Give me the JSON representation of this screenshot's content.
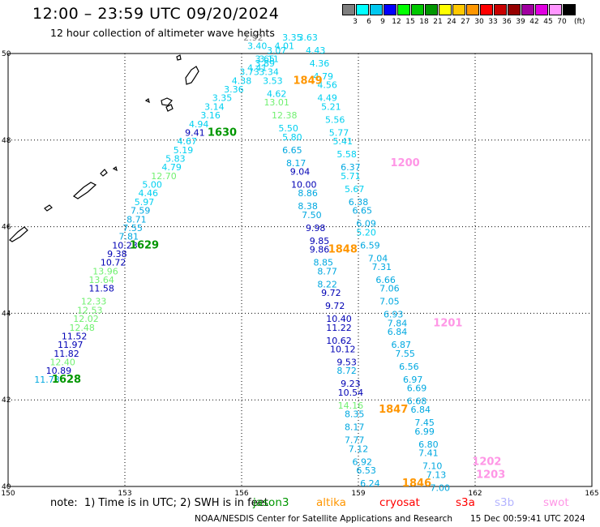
{
  "header": {
    "title": "12:00 – 23:59 UTC 09/20/2024",
    "subtitle": "12 hour collection of altimeter wave heights"
  },
  "legend": {
    "unit": "(ft)",
    "bins": [
      {
        "label": "3",
        "color": "#7f7f7f"
      },
      {
        "label": "6",
        "color": "#00ffff"
      },
      {
        "label": "9",
        "color": "#00c8f0"
      },
      {
        "label": "12",
        "color": "#0000ff"
      },
      {
        "label": "15",
        "color": "#00ff00"
      },
      {
        "label": "18",
        "color": "#00c800"
      },
      {
        "label": "21",
        "color": "#009600"
      },
      {
        "label": "24",
        "color": "#ffff00"
      },
      {
        "label": "27",
        "color": "#ffc800"
      },
      {
        "label": "30",
        "color": "#ff9600"
      },
      {
        "label": "33",
        "color": "#ff0000"
      },
      {
        "label": "36",
        "color": "#c80000"
      },
      {
        "label": "39",
        "color": "#960000"
      },
      {
        "label": "42",
        "color": "#a000a0"
      },
      {
        "label": "45",
        "color": "#e100e1"
      },
      {
        "label": "70",
        "color": "#ff96ff"
      },
      {
        "label": "",
        "color": "#000000"
      }
    ]
  },
  "map_data": {
    "lon_range": [
      150,
      165
    ],
    "lat_range": [
      40,
      50
    ],
    "lon_ticks": [
      "150",
      "153",
      "156",
      "159",
      "162",
      "165"
    ],
    "lat_ticks": [
      "50",
      "48",
      "46",
      "44",
      "42",
      "40"
    ],
    "track_colors": {
      "c": "#00d0f0",
      "b": "#00a8e0",
      "d": "#0000b4",
      "g": "#70f070",
      "gr": "#888888"
    },
    "tracks": [
      {
        "name": "jason3-a",
        "points": [
          [
            "11.73",
            151.0,
            42.4,
            "b"
          ],
          [
            "10.89",
            151.3,
            42.6,
            "d"
          ],
          [
            "12.40",
            151.4,
            42.8,
            "g"
          ],
          [
            "11.82",
            151.5,
            43.0,
            "d"
          ],
          [
            "11.97",
            151.6,
            43.2,
            "d"
          ],
          [
            "11.52",
            151.7,
            43.4,
            "d"
          ],
          [
            "12.48",
            151.9,
            43.6,
            "g"
          ],
          [
            "12.02",
            152.0,
            43.8,
            "g"
          ],
          [
            "12.53",
            152.1,
            44.0,
            "g"
          ],
          [
            "12.33",
            152.2,
            44.2,
            "g"
          ],
          [
            "11.58",
            152.4,
            44.5,
            "d"
          ],
          [
            "13.64",
            152.4,
            44.7,
            "g"
          ],
          [
            "13.96",
            152.5,
            44.9,
            "g"
          ],
          [
            "10.72",
            152.7,
            45.1,
            "d"
          ],
          [
            "9.38",
            152.8,
            45.3,
            "d"
          ],
          [
            "10.23",
            153.0,
            45.5,
            "d"
          ],
          [
            "7.81",
            153.1,
            45.7,
            "b"
          ],
          [
            "7.55",
            153.2,
            45.9,
            "b"
          ],
          [
            "8.71",
            153.3,
            46.1,
            "b"
          ],
          [
            "7.59",
            153.4,
            46.3,
            "b"
          ],
          [
            "5.97",
            153.5,
            46.5,
            "c"
          ],
          [
            "4.46",
            153.6,
            46.7,
            "c"
          ],
          [
            "5.00",
            153.7,
            46.9,
            "c"
          ],
          [
            "12.70",
            154.0,
            47.1,
            "g"
          ],
          [
            "4.79",
            154.2,
            47.3,
            "c"
          ],
          [
            "5.83",
            154.3,
            47.5,
            "c"
          ],
          [
            "5.19",
            154.5,
            47.7,
            "c"
          ],
          [
            "4.67",
            154.6,
            47.9,
            "c"
          ],
          [
            "9.41",
            154.8,
            48.1,
            "d"
          ],
          [
            "4.94",
            154.9,
            48.3,
            "c"
          ],
          [
            "3.16",
            155.2,
            48.5,
            "c"
          ],
          [
            "3.14",
            155.3,
            48.7,
            "c"
          ],
          [
            "3.35",
            155.5,
            48.9,
            "c"
          ],
          [
            "3.36",
            155.8,
            49.1,
            "c"
          ],
          [
            "4.38",
            156.0,
            49.3,
            "c"
          ],
          [
            "3.73",
            156.2,
            49.5,
            "c"
          ],
          [
            "4.41",
            156.4,
            49.6,
            "c"
          ],
          [
            "3.89",
            156.6,
            49.7,
            "c"
          ],
          [
            "3.65",
            156.6,
            49.8,
            "c"
          ],
          [
            "3.40",
            156.4,
            50.1,
            "c"
          ],
          [
            "2.92",
            156.3,
            50.3,
            "gr"
          ]
        ]
      },
      {
        "name": "sentinel3a",
        "points": [
          [
            "3.35",
            157.3,
            50.3,
            "c"
          ],
          [
            "4.01",
            157.1,
            50.1,
            "c"
          ],
          [
            "3.07",
            156.9,
            50.0,
            "c"
          ],
          [
            "3.11",
            156.7,
            49.8,
            "c"
          ],
          [
            "3.34",
            156.7,
            49.5,
            "c"
          ],
          [
            "3.53",
            156.8,
            49.3,
            "c"
          ],
          [
            "4.62",
            156.9,
            49.0,
            "c"
          ],
          [
            "13.01",
            156.9,
            48.8,
            "g"
          ],
          [
            "12.38",
            157.1,
            48.5,
            "g"
          ],
          [
            "5.50",
            157.2,
            48.2,
            "c"
          ],
          [
            "5.80",
            157.3,
            48.0,
            "c"
          ],
          [
            "6.65",
            157.3,
            47.7,
            "b"
          ],
          [
            "8.17",
            157.4,
            47.4,
            "b"
          ],
          [
            "9.04",
            157.5,
            47.2,
            "d"
          ],
          [
            "10.00",
            157.6,
            46.9,
            "d"
          ],
          [
            "8.86",
            157.7,
            46.7,
            "b"
          ],
          [
            "8.38",
            157.7,
            46.4,
            "b"
          ],
          [
            "7.50",
            157.8,
            46.2,
            "b"
          ],
          [
            "9.98",
            157.9,
            45.9,
            "d"
          ],
          [
            "9.85",
            158.0,
            45.6,
            "d"
          ],
          [
            "9.86",
            158.0,
            45.4,
            "d"
          ],
          [
            "8.85",
            158.1,
            45.1,
            "b"
          ],
          [
            "8.77",
            158.2,
            44.9,
            "b"
          ],
          [
            "8.22",
            158.2,
            44.6,
            "b"
          ],
          [
            "9.72",
            158.3,
            44.4,
            "d"
          ],
          [
            "9.72",
            158.4,
            44.1,
            "d"
          ],
          [
            "10.40",
            158.5,
            43.8,
            "d"
          ],
          [
            "11.22",
            158.5,
            43.6,
            "d"
          ],
          [
            "10.62",
            158.5,
            43.3,
            "d"
          ],
          [
            "10.12",
            158.6,
            43.1,
            "d"
          ],
          [
            "9.53",
            158.7,
            42.8,
            "d"
          ],
          [
            "8.72",
            158.7,
            42.6,
            "b"
          ],
          [
            "9.23",
            158.8,
            42.3,
            "d"
          ],
          [
            "10.54",
            158.8,
            42.1,
            "d"
          ],
          [
            "14.16",
            158.8,
            41.8,
            "g"
          ],
          [
            "8.35",
            158.9,
            41.6,
            "b"
          ],
          [
            "8.17",
            158.9,
            41.3,
            "b"
          ],
          [
            "7.77",
            158.9,
            41.0,
            "b"
          ],
          [
            "7.12",
            159.0,
            40.8,
            "b"
          ],
          [
            "6.92",
            159.1,
            40.5,
            "b"
          ],
          [
            "6.53",
            159.2,
            40.3,
            "b"
          ],
          [
            "6.24",
            159.3,
            40.0,
            "b"
          ]
        ]
      },
      {
        "name": "sentinel3b",
        "points": [
          [
            "3.63",
            157.7,
            50.3,
            "c"
          ],
          [
            "4.43",
            157.9,
            50.0,
            "c"
          ],
          [
            "4.36",
            158.0,
            49.7,
            "c"
          ],
          [
            "4.79",
            158.1,
            49.4,
            "c"
          ],
          [
            "4.56",
            158.2,
            49.2,
            "c"
          ],
          [
            "4.49",
            158.2,
            48.9,
            "c"
          ],
          [
            "5.21",
            158.3,
            48.7,
            "c"
          ],
          [
            "5.56",
            158.4,
            48.4,
            "c"
          ],
          [
            "5.77",
            158.5,
            48.1,
            "c"
          ],
          [
            "5.41",
            158.6,
            47.9,
            "c"
          ],
          [
            "5.58",
            158.7,
            47.6,
            "c"
          ],
          [
            "6.37",
            158.8,
            47.3,
            "b"
          ],
          [
            "5.71",
            158.8,
            47.1,
            "c"
          ],
          [
            "5.67",
            158.9,
            46.8,
            "c"
          ],
          [
            "6.38",
            159.0,
            46.5,
            "b"
          ],
          [
            "6.65",
            159.1,
            46.3,
            "b"
          ],
          [
            "6.09",
            159.2,
            46.0,
            "b"
          ],
          [
            "5.20",
            159.2,
            45.8,
            "c"
          ],
          [
            "6.59",
            159.3,
            45.5,
            "b"
          ],
          [
            "7.04",
            159.5,
            45.2,
            "b"
          ],
          [
            "7.31",
            159.6,
            45.0,
            "b"
          ],
          [
            "6.66",
            159.7,
            44.7,
            "b"
          ],
          [
            "7.06",
            159.8,
            44.5,
            "b"
          ],
          [
            "7.05",
            159.8,
            44.2,
            "b"
          ],
          [
            "6.93",
            159.9,
            43.9,
            "b"
          ],
          [
            "7.84",
            160.0,
            43.7,
            "b"
          ],
          [
            "6.84",
            160.0,
            43.5,
            "b"
          ],
          [
            "6.87",
            160.1,
            43.2,
            "b"
          ],
          [
            "7.55",
            160.2,
            43.0,
            "b"
          ],
          [
            "6.56",
            160.3,
            42.7,
            "b"
          ],
          [
            "6.97",
            160.4,
            42.4,
            "b"
          ],
          [
            "6.69",
            160.5,
            42.2,
            "b"
          ],
          [
            "6.68",
            160.5,
            41.9,
            "b"
          ],
          [
            "6.84",
            160.6,
            41.7,
            "b"
          ],
          [
            "7.45",
            160.7,
            41.4,
            "b"
          ],
          [
            "6.99",
            160.7,
            41.2,
            "b"
          ],
          [
            "6.80",
            160.8,
            40.9,
            "b"
          ],
          [
            "7.41",
            160.8,
            40.7,
            "b"
          ],
          [
            "7.10",
            160.9,
            40.4,
            "b"
          ],
          [
            "7.13",
            161.0,
            40.2,
            "b"
          ],
          [
            "7.00",
            161.1,
            39.9,
            "b"
          ]
        ]
      }
    ],
    "times": [
      {
        "text": "1628",
        "lon": 151.5,
        "lat": 42.4,
        "color": "#009600"
      },
      {
        "text": "1629",
        "lon": 153.5,
        "lat": 45.5,
        "color": "#009600"
      },
      {
        "text": "1630",
        "lon": 155.5,
        "lat": 48.1,
        "color": "#009600"
      },
      {
        "text": "1849",
        "lon": 157.7,
        "lat": 49.3,
        "color": "#ff9600"
      },
      {
        "text": "1848",
        "lon": 158.6,
        "lat": 45.4,
        "color": "#ff9600"
      },
      {
        "text": "1847",
        "lon": 159.9,
        "lat": 41.7,
        "color": "#ff9600"
      },
      {
        "text": "1846",
        "lon": 160.5,
        "lat": 40.0,
        "color": "#ff9600"
      },
      {
        "text": "1200",
        "lon": 160.2,
        "lat": 47.4,
        "color": "#ff96e6"
      },
      {
        "text": "1201",
        "lon": 161.3,
        "lat": 43.7,
        "color": "#ff96e6"
      },
      {
        "text": "1202",
        "lon": 162.3,
        "lat": 40.5,
        "color": "#ff96e6"
      },
      {
        "text": "1203",
        "lon": 162.4,
        "lat": 40.2,
        "color": "#ff96e6"
      }
    ]
  },
  "footer": {
    "note": "note:  1) Time is in UTC; 2) SWH is in feet",
    "satellites": [
      {
        "name": "jason3",
        "color": "#009600",
        "left": 312
      },
      {
        "name": "altika",
        "color": "#ff9600",
        "left": 390
      },
      {
        "name": "cryosat",
        "color": "#ff0000",
        "left": 468
      },
      {
        "name": "s3a",
        "color": "#ff0000",
        "left": 562
      },
      {
        "name": "s3b",
        "color": "#b4b4ff",
        "left": 610
      },
      {
        "name": "swot",
        "color": "#ff96e6",
        "left": 670
      }
    ],
    "credit": "NOAA/NESDIS Center for Satellite Applications and Research",
    "timestamp": "15 Dec 00:59:41 UTC 2024"
  }
}
